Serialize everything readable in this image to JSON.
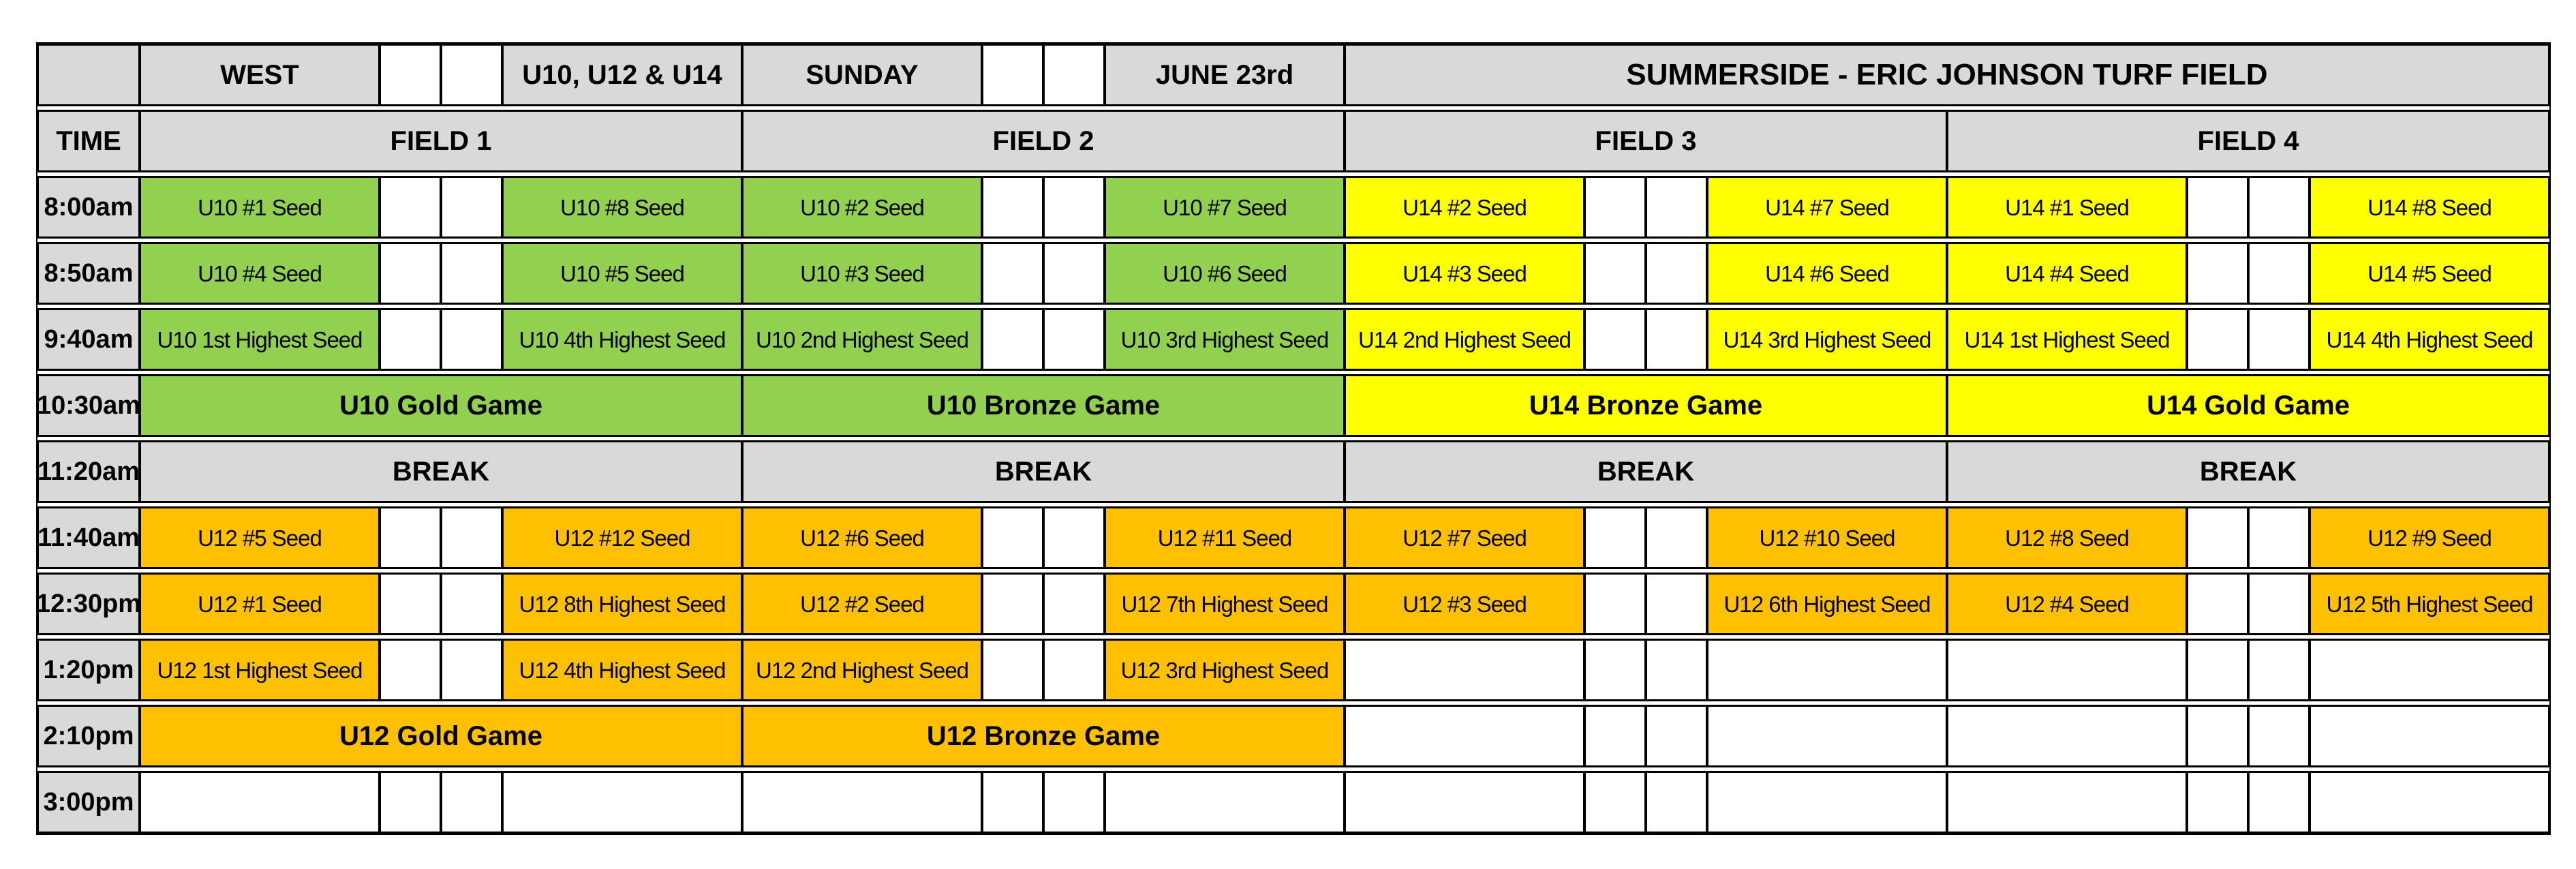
{
  "colors": {
    "green": "#92d050",
    "yellow": "#ffff00",
    "orange": "#ffc000",
    "gray": "#d9d9d9",
    "border": "#000000",
    "background": "#ffffff"
  },
  "header": {
    "corner": "",
    "group_headers": [
      {
        "left": "WEST",
        "right": "U10, U12 & U14"
      },
      {
        "left": "SUNDAY",
        "right": "JUNE 23rd"
      }
    ],
    "venue": "SUMMERSIDE - ERIC JOHNSON TURF FIELD",
    "time_label": "TIME",
    "field_labels": [
      "FIELD 1",
      "FIELD 2",
      "FIELD 3",
      "FIELD 4"
    ]
  },
  "schedule": {
    "rows": [
      {
        "time": "8:00am",
        "groups": [
          {
            "type": "match",
            "left": "U10 #1 Seed",
            "right": "U10 #8 Seed",
            "color": "green"
          },
          {
            "type": "match",
            "left": "U10 #2 Seed",
            "right": "U10 #7 Seed",
            "color": "green"
          },
          {
            "type": "match",
            "left": "U14 #2 Seed",
            "right": "U14 #7 Seed",
            "color": "yellow"
          },
          {
            "type": "match",
            "left": "U14 #1 Seed",
            "right": "U14 #8 Seed",
            "color": "yellow"
          }
        ]
      },
      {
        "time": "8:50am",
        "groups": [
          {
            "type": "match",
            "left": "U10 #4 Seed",
            "right": "U10 #5 Seed",
            "color": "green"
          },
          {
            "type": "match",
            "left": "U10 #3 Seed",
            "right": "U10 #6 Seed",
            "color": "green"
          },
          {
            "type": "match",
            "left": "U14 #3 Seed",
            "right": "U14 #6 Seed",
            "color": "yellow"
          },
          {
            "type": "match",
            "left": "U14 #4 Seed",
            "right": "U14 #5 Seed",
            "color": "yellow"
          }
        ]
      },
      {
        "time": "9:40am",
        "groups": [
          {
            "type": "match",
            "left": "U10 1st Highest Seed",
            "right": "U10 4th Highest Seed",
            "color": "green"
          },
          {
            "type": "match",
            "left": "U10 2nd Highest Seed",
            "right": "U10 3rd Highest Seed",
            "color": "green"
          },
          {
            "type": "match",
            "left": "U14 2nd Highest Seed",
            "right": "U14 3rd Highest Seed",
            "color": "yellow"
          },
          {
            "type": "match",
            "left": "U14 1st Highest Seed",
            "right": "U14 4th Highest Seed",
            "color": "yellow"
          }
        ]
      },
      {
        "time": "10:30am",
        "groups": [
          {
            "type": "game",
            "label": "U10 Gold Game",
            "color": "green"
          },
          {
            "type": "game",
            "label": "U10 Bronze Game",
            "color": "green"
          },
          {
            "type": "game",
            "label": "U14 Bronze Game",
            "color": "yellow"
          },
          {
            "type": "game",
            "label": "U14 Gold Game",
            "color": "yellow"
          }
        ]
      },
      {
        "time": "11:20am",
        "groups": [
          {
            "type": "game",
            "label": "BREAK",
            "color": "gray"
          },
          {
            "type": "game",
            "label": "BREAK",
            "color": "gray"
          },
          {
            "type": "game",
            "label": "BREAK",
            "color": "gray"
          },
          {
            "type": "game",
            "label": "BREAK",
            "color": "gray"
          }
        ]
      },
      {
        "time": "11:40am",
        "groups": [
          {
            "type": "match",
            "left": "U12 #5 Seed",
            "right": "U12 #12 Seed",
            "color": "orange"
          },
          {
            "type": "match",
            "left": "U12 #6 Seed",
            "right": "U12 #11 Seed",
            "color": "orange"
          },
          {
            "type": "match",
            "left": "U12 #7 Seed",
            "right": "U12 #10 Seed",
            "color": "orange"
          },
          {
            "type": "match",
            "left": "U12 #8 Seed",
            "right": "U12 #9 Seed",
            "color": "orange"
          }
        ]
      },
      {
        "time": "12:30pm",
        "groups": [
          {
            "type": "match",
            "left": "U12 #1 Seed",
            "right": "U12 8th Highest Seed",
            "color": "orange"
          },
          {
            "type": "match",
            "left": "U12 #2 Seed",
            "right": "U12 7th Highest Seed",
            "color": "orange"
          },
          {
            "type": "match",
            "left": "U12 #3 Seed",
            "right": "U12 6th Highest Seed",
            "color": "orange"
          },
          {
            "type": "match",
            "left": "U12 #4 Seed",
            "right": "U12 5th Highest Seed",
            "color": "orange"
          }
        ]
      },
      {
        "time": "1:20pm",
        "groups": [
          {
            "type": "match",
            "left": "U12 1st Highest Seed",
            "right": "U12 4th Highest Seed",
            "color": "orange"
          },
          {
            "type": "match",
            "left": "U12 2nd Highest Seed",
            "right": "U12 3rd Highest Seed",
            "color": "orange"
          },
          {
            "type": "empty"
          },
          {
            "type": "empty"
          }
        ]
      },
      {
        "time": "2:10pm",
        "groups": [
          {
            "type": "game",
            "label": "U12 Gold Game",
            "color": "orange"
          },
          {
            "type": "game",
            "label": "U12 Bronze Game",
            "color": "orange"
          },
          {
            "type": "empty"
          },
          {
            "type": "empty"
          }
        ]
      },
      {
        "time": "3:00pm",
        "groups": [
          {
            "type": "empty"
          },
          {
            "type": "empty"
          },
          {
            "type": "empty"
          },
          {
            "type": "empty"
          }
        ]
      }
    ]
  }
}
